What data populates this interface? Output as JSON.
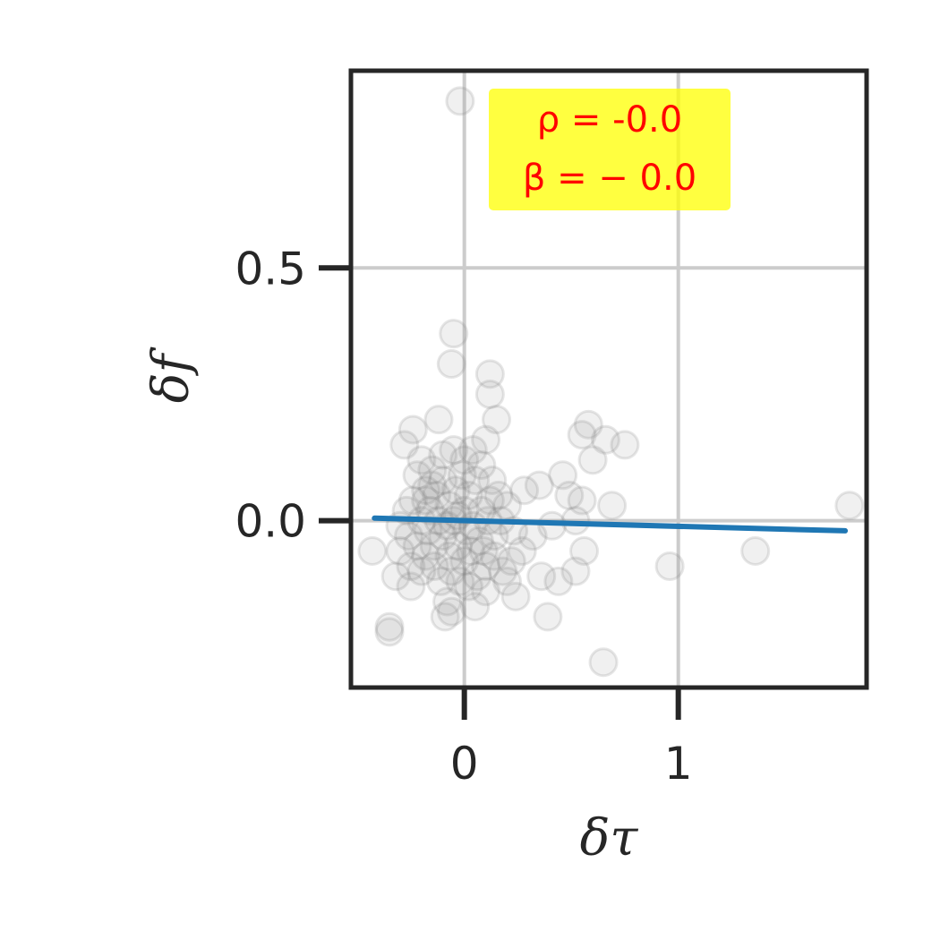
{
  "chart_data": {
    "type": "scatter",
    "xlabel": "δτ",
    "ylabel": "δf",
    "xlim": [
      -0.53,
      1.88
    ],
    "ylim": [
      -0.33,
      0.89
    ],
    "x_ticks": [
      {
        "value": 0,
        "label": "0"
      },
      {
        "value": 1,
        "label": "1"
      }
    ],
    "y_ticks": [
      {
        "value": 0.0,
        "label": "0.0"
      },
      {
        "value": 0.5,
        "label": "0.5"
      }
    ],
    "grid": true,
    "annotation": {
      "lines": [
        "ρ = -0.0",
        "β = − 0.0"
      ],
      "background": "#ffff00",
      "color": "#ff0000",
      "placement": "top-center"
    },
    "regression_line": {
      "x": [
        -0.42,
        1.78
      ],
      "y": [
        0.005,
        -0.02
      ],
      "color": "#1f77b4"
    },
    "point_color": "#808080",
    "points": [
      {
        "x": -0.02,
        "y": 0.83
      },
      {
        "x": -0.05,
        "y": 0.37
      },
      {
        "x": -0.06,
        "y": 0.31
      },
      {
        "x": 0.12,
        "y": 0.29
      },
      {
        "x": 0.12,
        "y": 0.25
      },
      {
        "x": -0.12,
        "y": 0.2
      },
      {
        "x": 0.15,
        "y": 0.2
      },
      {
        "x": -0.24,
        "y": 0.18
      },
      {
        "x": -0.28,
        "y": 0.15
      },
      {
        "x": 0.58,
        "y": 0.19
      },
      {
        "x": 0.55,
        "y": 0.17
      },
      {
        "x": 0.66,
        "y": 0.16
      },
      {
        "x": 0.75,
        "y": 0.15
      },
      {
        "x": 0.6,
        "y": 0.12
      },
      {
        "x": 0.46,
        "y": 0.09
      },
      {
        "x": 0.35,
        "y": 0.07
      },
      {
        "x": 0.28,
        "y": 0.06
      },
      {
        "x": 0.49,
        "y": 0.05
      },
      {
        "x": 0.55,
        "y": 0.04
      },
      {
        "x": 0.69,
        "y": 0.03
      },
      {
        "x": 1.8,
        "y": 0.03
      },
      {
        "x": 0.52,
        "y": 0.0
      },
      {
        "x": 0.41,
        "y": -0.01
      },
      {
        "x": 0.32,
        "y": -0.03
      },
      {
        "x": 0.56,
        "y": -0.06
      },
      {
        "x": 1.36,
        "y": -0.06
      },
      {
        "x": -0.43,
        "y": -0.06
      },
      {
        "x": 0.52,
        "y": -0.1
      },
      {
        "x": 0.96,
        "y": -0.09
      },
      {
        "x": 0.36,
        "y": -0.11
      },
      {
        "x": 0.44,
        "y": -0.12
      },
      {
        "x": 0.2,
        "y": -0.12
      },
      {
        "x": 0.24,
        "y": -0.15
      },
      {
        "x": 0.1,
        "y": -0.14
      },
      {
        "x": -0.32,
        "y": -0.11
      },
      {
        "x": -0.25,
        "y": -0.13
      },
      {
        "x": -0.08,
        "y": -0.16
      },
      {
        "x": -0.06,
        "y": -0.18
      },
      {
        "x": 0.05,
        "y": -0.17
      },
      {
        "x": 0.39,
        "y": -0.19
      },
      {
        "x": -0.09,
        "y": -0.19
      },
      {
        "x": -0.35,
        "y": -0.21
      },
      {
        "x": -0.35,
        "y": -0.22
      },
      {
        "x": 0.65,
        "y": -0.28
      },
      {
        "x": -0.2,
        "y": 0.12
      },
      {
        "x": -0.22,
        "y": 0.09
      },
      {
        "x": -0.18,
        "y": 0.06
      },
      {
        "x": -0.15,
        "y": 0.1
      },
      {
        "x": -0.1,
        "y": 0.13
      },
      {
        "x": -0.05,
        "y": 0.14
      },
      {
        "x": 0.0,
        "y": 0.12
      },
      {
        "x": 0.04,
        "y": 0.14
      },
      {
        "x": 0.08,
        "y": 0.11
      },
      {
        "x": 0.1,
        "y": 0.16
      },
      {
        "x": 0.13,
        "y": 0.08
      },
      {
        "x": 0.16,
        "y": 0.05
      },
      {
        "x": 0.2,
        "y": 0.03
      },
      {
        "x": 0.23,
        "y": -0.02
      },
      {
        "x": 0.27,
        "y": -0.06
      },
      {
        "x": 0.22,
        "y": -0.08
      },
      {
        "x": 0.18,
        "y": -0.1
      },
      {
        "x": 0.14,
        "y": -0.07
      },
      {
        "x": 0.1,
        "y": -0.09
      },
      {
        "x": 0.06,
        "y": -0.11
      },
      {
        "x": 0.02,
        "y": -0.13
      },
      {
        "x": -0.02,
        "y": -0.12
      },
      {
        "x": -0.06,
        "y": -0.1
      },
      {
        "x": -0.11,
        "y": -0.12
      },
      {
        "x": -0.14,
        "y": -0.09
      },
      {
        "x": -0.18,
        "y": -0.07
      },
      {
        "x": -0.22,
        "y": -0.05
      },
      {
        "x": -0.26,
        "y": -0.03
      },
      {
        "x": -0.3,
        "y": -0.01
      },
      {
        "x": -0.27,
        "y": 0.02
      },
      {
        "x": -0.24,
        "y": 0.04
      },
      {
        "x": -0.3,
        "y": -0.06
      },
      {
        "x": -0.2,
        "y": -0.1
      },
      {
        "x": -0.16,
        "y": 0.02
      },
      {
        "x": -0.13,
        "y": 0.05
      },
      {
        "x": -0.1,
        "y": 0.08
      },
      {
        "x": -0.07,
        "y": 0.03
      },
      {
        "x": -0.04,
        "y": 0.06
      },
      {
        "x": -0.01,
        "y": 0.09
      },
      {
        "x": 0.02,
        "y": 0.05
      },
      {
        "x": 0.05,
        "y": 0.08
      },
      {
        "x": 0.08,
        "y": 0.02
      },
      {
        "x": 0.11,
        "y": 0.0
      },
      {
        "x": 0.14,
        "y": -0.03
      },
      {
        "x": 0.07,
        "y": -0.04
      },
      {
        "x": 0.03,
        "y": -0.06
      },
      {
        "x": 0.0,
        "y": -0.08
      },
      {
        "x": -0.03,
        "y": -0.05
      },
      {
        "x": -0.07,
        "y": -0.07
      },
      {
        "x": -0.1,
        "y": -0.03
      },
      {
        "x": -0.14,
        "y": -0.05
      },
      {
        "x": -0.17,
        "y": -0.02
      },
      {
        "x": -0.2,
        "y": 0.0
      },
      {
        "x": -0.12,
        "y": 0.0
      },
      {
        "x": -0.05,
        "y": 0.0
      },
      {
        "x": 0.0,
        "y": 0.02
      },
      {
        "x": 0.04,
        "y": -0.01
      },
      {
        "x": -0.08,
        "y": -0.01
      },
      {
        "x": -0.15,
        "y": 0.07
      },
      {
        "x": 0.12,
        "y": 0.04
      },
      {
        "x": 0.17,
        "y": 0.0
      },
      {
        "x": -0.25,
        "y": -0.09
      },
      {
        "x": 0.01,
        "y": -0.02
      },
      {
        "x": -0.03,
        "y": 0.01
      },
      {
        "x": 0.09,
        "y": -0.06
      },
      {
        "x": -0.18,
        "y": 0.04
      }
    ]
  }
}
